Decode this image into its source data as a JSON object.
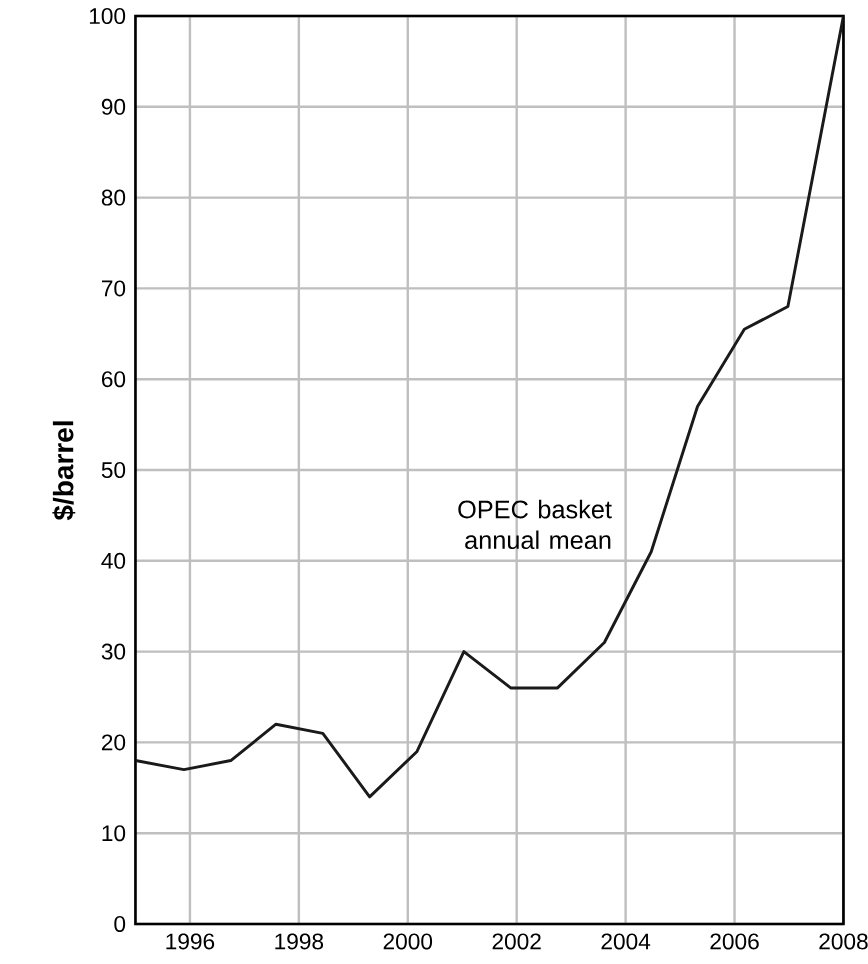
{
  "chart_data": {
    "type": "line",
    "ylabel": "$/barrel",
    "annotations": [
      "OPEC basket annual mean"
    ],
    "x": [
      1995,
      1995.89,
      1996.75,
      1997.58,
      1998.44,
      1999.3,
      2000.17,
      2001.03,
      2001.89,
      2002.75,
      2003.61,
      2004.47,
      2005.32,
      2006.18,
      2006.98,
      2008
    ],
    "series": [
      {
        "color": "#1a1a1a",
        "values": [
          18,
          17,
          18,
          22,
          21,
          14,
          19,
          30,
          26,
          26,
          31,
          41,
          57,
          65.5,
          68,
          100
        ]
      }
    ],
    "xlim": [
      1995,
      2008
    ],
    "xticks": [
      1996,
      1998,
      2000,
      2002,
      2004,
      2006,
      2008
    ],
    "ylim": [
      0,
      100
    ],
    "yticks": [
      0,
      10,
      20,
      30,
      40,
      50,
      60,
      70,
      80,
      90,
      100
    ],
    "grid": true,
    "marker": "none",
    "line_style": "solid"
  }
}
